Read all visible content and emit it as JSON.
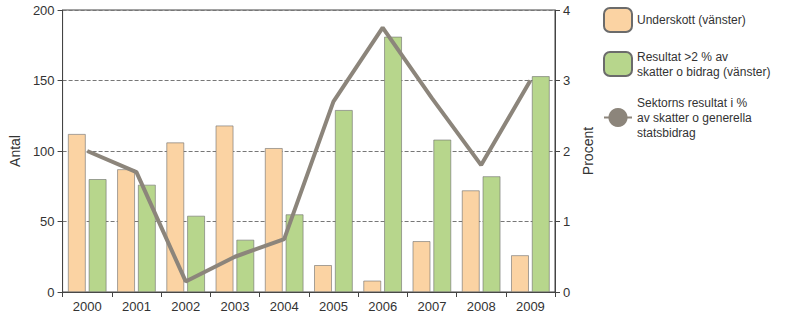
{
  "chart_data": {
    "type": "bar",
    "categories": [
      "2000",
      "2001",
      "2002",
      "2003",
      "2004",
      "2005",
      "2006",
      "2007",
      "2008",
      "2009"
    ],
    "series": [
      {
        "name": "Underskott (vänster)",
        "type": "bar",
        "color": "#fbd3a3",
        "values": [
          112,
          87,
          106,
          118,
          102,
          19,
          8,
          36,
          72,
          26
        ]
      },
      {
        "name": "Resultat >2 % av\nskatter o bidrag (vänster)",
        "type": "bar",
        "color": "#b7d68c",
        "values": [
          80,
          76,
          54,
          37,
          55,
          129,
          181,
          108,
          82,
          153
        ]
      },
      {
        "name": "Sektorns resultat i %\nav skatter o generella\nstatsbidrag",
        "type": "line",
        "axis": "y2",
        "color": "#8c857b",
        "values": [
          2.0,
          1.7,
          0.15,
          0.5,
          0.75,
          2.7,
          3.75,
          2.75,
          1.8,
          3.0
        ]
      }
    ],
    "y_label": "Antal",
    "y2_label": "Procent",
    "ylim": [
      0,
      200
    ],
    "yticks": [
      0,
      50,
      100,
      150,
      200
    ],
    "y2lim": [
      0,
      4
    ],
    "y2ticks": [
      0,
      1,
      2,
      3,
      4
    ],
    "grid": true,
    "legend": "right"
  }
}
